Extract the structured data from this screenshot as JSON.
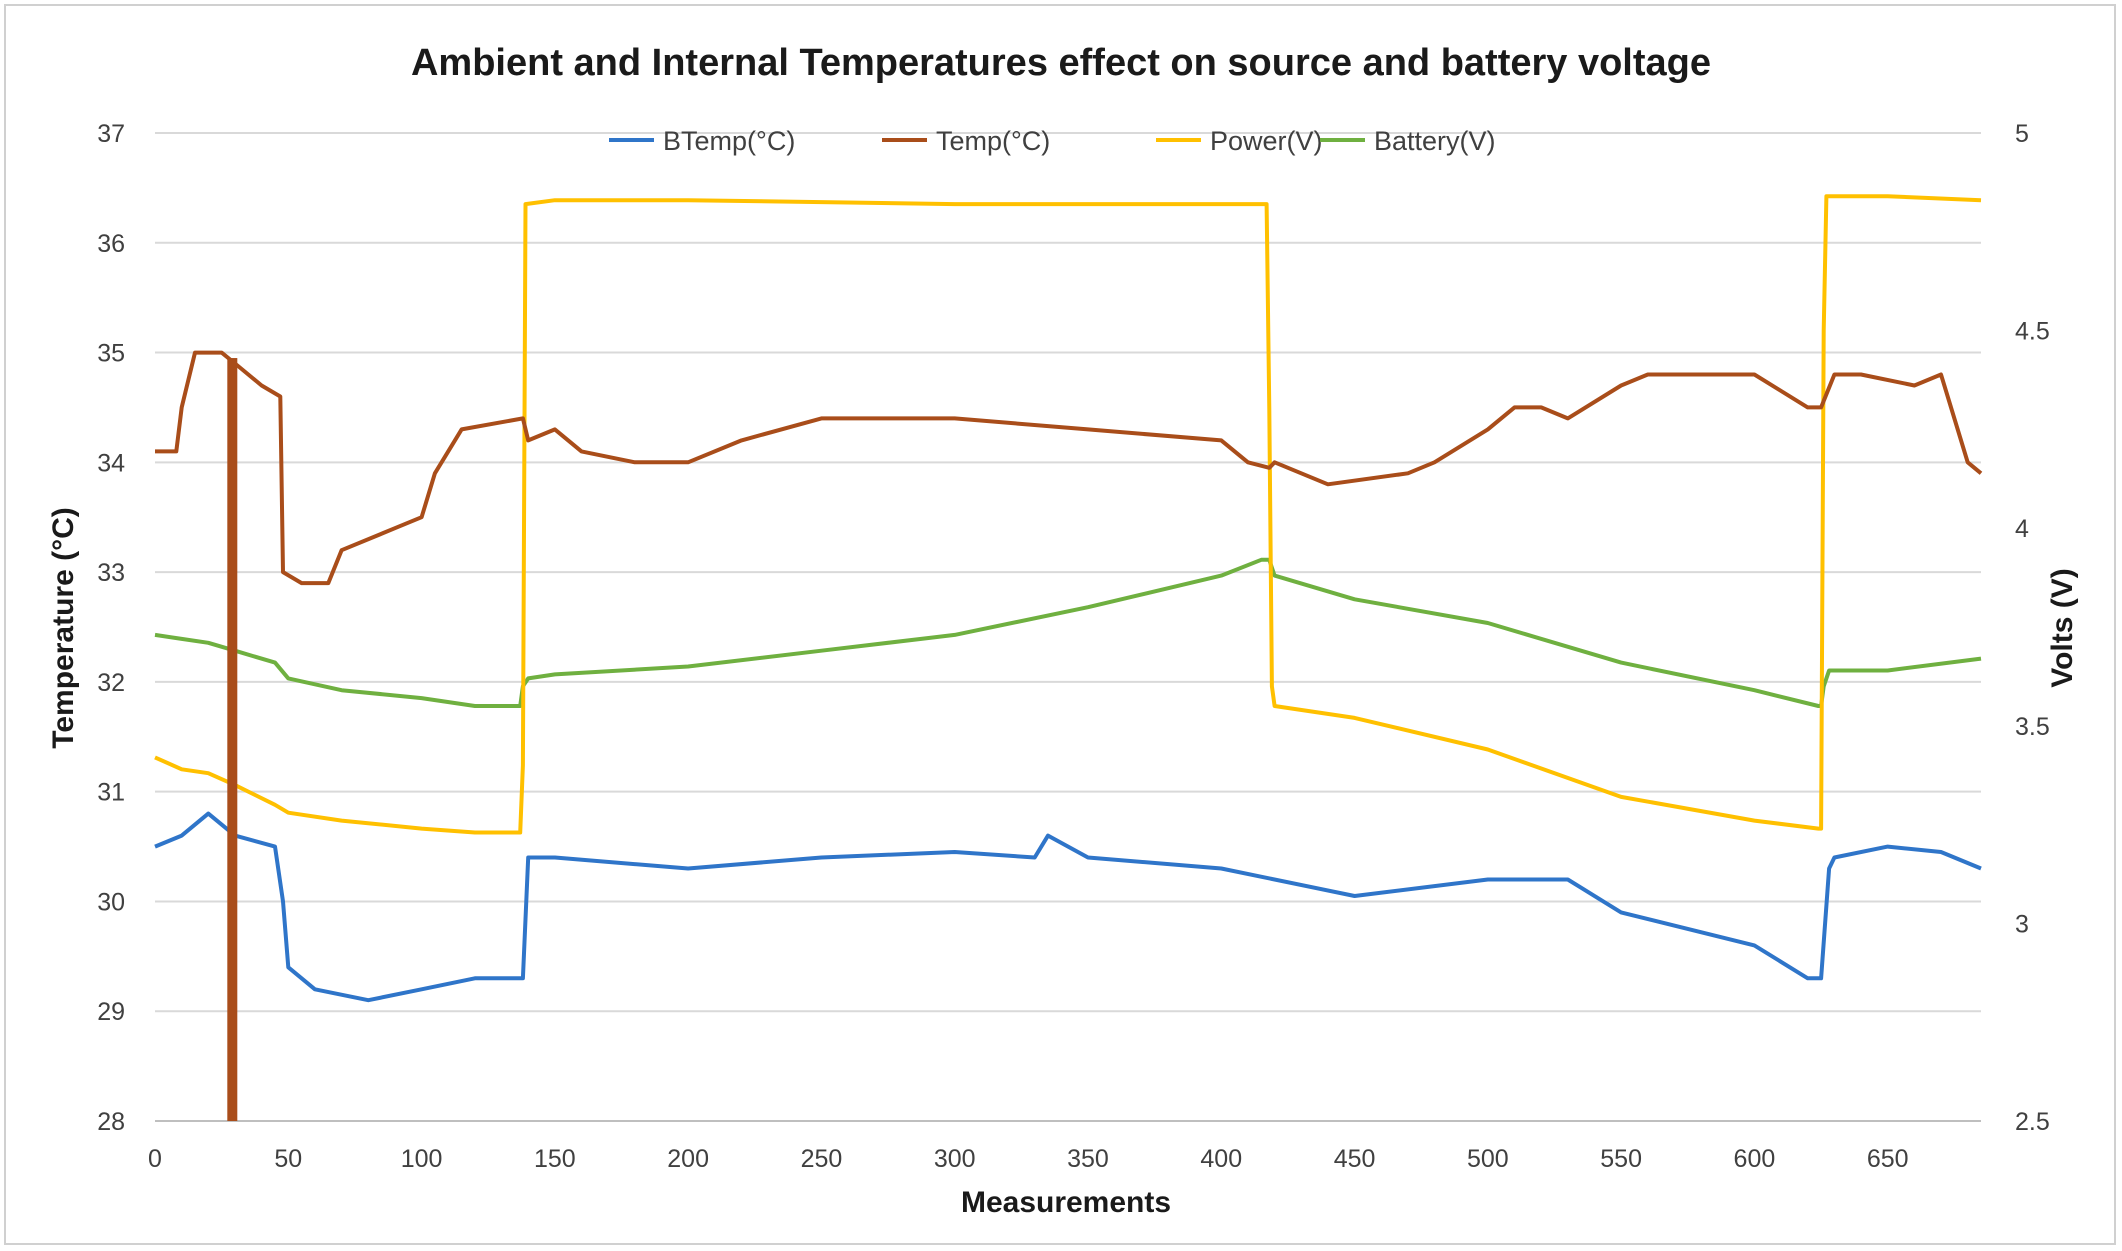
{
  "chart_data": {
    "type": "line",
    "title": "Ambient and Internal Temperatures effect on source and battery voltage",
    "xlabel": "Measurements",
    "ylabel": "Temperature (°C)",
    "y2label": "Volts (V)",
    "xlim": [
      0,
      685
    ],
    "ylim": [
      28,
      37
    ],
    "y2lim": [
      2.5,
      5
    ],
    "xticks": [
      0,
      50,
      100,
      150,
      200,
      250,
      300,
      350,
      400,
      450,
      500,
      550,
      600,
      650
    ],
    "yticks": [
      28,
      29,
      30,
      31,
      32,
      33,
      34,
      35,
      36,
      37
    ],
    "y2ticks": [
      2.5,
      3,
      3.5,
      4,
      4.5,
      5
    ],
    "y2tick_labels": [
      "2.5",
      "3",
      "3.5",
      "4",
      "4.5",
      "5"
    ],
    "legend_position": "top",
    "series": [
      {
        "name": "BTemp(°C)",
        "axis": "left",
        "color": "#2f75c9",
        "x": [
          0,
          10,
          20,
          30,
          45,
          48,
          50,
          60,
          80,
          100,
          120,
          135,
          138,
          140,
          150,
          200,
          250,
          300,
          330,
          335,
          350,
          400,
          450,
          500,
          530,
          550,
          600,
          620,
          625,
          628,
          630,
          650,
          670,
          685
        ],
        "y": [
          30.5,
          30.6,
          30.8,
          30.6,
          30.5,
          30.0,
          29.4,
          29.2,
          29.1,
          29.2,
          29.3,
          29.3,
          29.3,
          30.4,
          30.4,
          30.3,
          30.4,
          30.45,
          30.4,
          30.6,
          30.4,
          30.3,
          30.05,
          30.2,
          30.2,
          29.9,
          29.6,
          29.3,
          29.3,
          30.3,
          30.4,
          30.5,
          30.45,
          30.3
        ]
      },
      {
        "name": "Temp(°C)",
        "axis": "left",
        "color": "#a94d1a",
        "x": [
          0,
          8,
          10,
          15,
          25,
          30,
          40,
          47,
          48,
          55,
          65,
          70,
          90,
          100,
          105,
          115,
          138,
          140,
          150,
          160,
          180,
          200,
          220,
          250,
          300,
          350,
          400,
          410,
          418,
          420,
          440,
          470,
          480,
          500,
          510,
          520,
          530,
          550,
          560,
          600,
          620,
          625,
          630,
          640,
          660,
          670,
          680,
          685
        ],
        "y": [
          34.1,
          34.1,
          34.5,
          35.0,
          35.0,
          34.9,
          34.7,
          34.6,
          33.0,
          32.9,
          32.9,
          33.2,
          33.4,
          33.5,
          33.9,
          34.3,
          34.4,
          34.2,
          34.3,
          34.1,
          34.0,
          34.0,
          34.2,
          34.4,
          34.4,
          34.3,
          34.2,
          34.0,
          33.95,
          34.0,
          33.8,
          33.9,
          34.0,
          34.3,
          34.5,
          34.5,
          34.4,
          34.7,
          34.8,
          34.8,
          34.5,
          34.5,
          34.8,
          34.8,
          34.7,
          34.8,
          34.0,
          33.9
        ]
      },
      {
        "name": "Power(V)",
        "axis": "right",
        "color": "#ffc000",
        "x": [
          0,
          10,
          20,
          30,
          45,
          50,
          70,
          100,
          120,
          137,
          138,
          139,
          150,
          200,
          300,
          400,
          417,
          418,
          419,
          420,
          450,
          500,
          550,
          600,
          624,
          625,
          626,
          627,
          650,
          685
        ],
        "y": [
          3.42,
          3.39,
          3.38,
          3.35,
          3.3,
          3.28,
          3.26,
          3.24,
          3.23,
          3.23,
          3.4,
          4.82,
          4.83,
          4.83,
          4.82,
          4.82,
          4.82,
          4.3,
          3.6,
          3.55,
          3.52,
          3.44,
          3.32,
          3.26,
          3.24,
          3.24,
          4.5,
          4.84,
          4.84,
          4.83
        ]
      },
      {
        "name": "Battery(V)",
        "axis": "right",
        "color": "#6fb040",
        "x": [
          0,
          10,
          20,
          30,
          45,
          50,
          70,
          100,
          120,
          137,
          138,
          140,
          150,
          200,
          250,
          300,
          350,
          400,
          415,
          418,
          419,
          420,
          450,
          500,
          550,
          600,
          624,
          625,
          626,
          628,
          650,
          685
        ],
        "y": [
          3.73,
          3.72,
          3.71,
          3.69,
          3.66,
          3.62,
          3.59,
          3.57,
          3.55,
          3.55,
          3.6,
          3.62,
          3.63,
          3.65,
          3.69,
          3.73,
          3.8,
          3.88,
          3.92,
          3.92,
          3.9,
          3.88,
          3.82,
          3.76,
          3.66,
          3.59,
          3.55,
          3.55,
          3.6,
          3.64,
          3.64,
          3.67
        ]
      }
    ],
    "annotations": [
      {
        "type": "vertical-bar",
        "x": 29,
        "y_from": 28,
        "y_to": 34.95,
        "color": "#a94d1a"
      }
    ]
  }
}
